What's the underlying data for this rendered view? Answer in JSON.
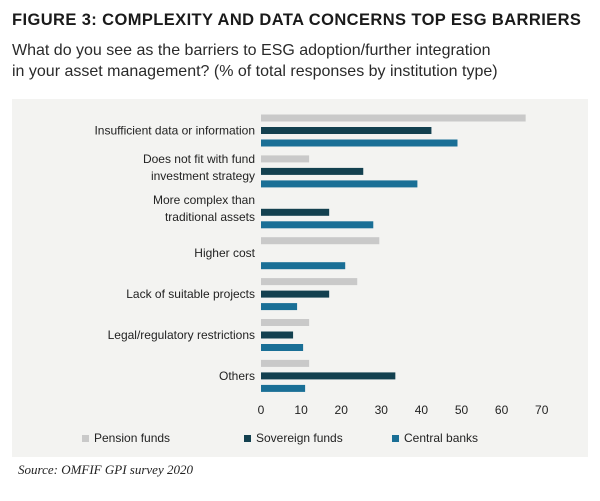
{
  "figure": {
    "title": "FIGURE 3: COMPLEXITY AND DATA CONCERNS TOP ESG BARRIERS",
    "subtitle_line1": "What do you see as the barriers to ESG adoption/further integration",
    "subtitle_line2": "in your asset management? (% of total responses by institution type)",
    "source": "Source: OMFIF GPI survey 2020"
  },
  "chart_data": {
    "type": "bar",
    "orientation": "horizontal",
    "categories": [
      [
        "Insufficient data or information"
      ],
      [
        "Does not fit with fund",
        "investment strategy"
      ],
      [
        "More complex than",
        "traditional assets"
      ],
      [
        "Higher cost"
      ],
      [
        "Lack of suitable projects"
      ],
      [
        "Legal/regulatory restrictions"
      ],
      [
        "Others"
      ]
    ],
    "series": [
      {
        "name": "Pension funds",
        "color": "#c9c9c9",
        "values": [
          66,
          12,
          0,
          29.5,
          24,
          12,
          12
        ]
      },
      {
        "name": "Sovereign funds",
        "color": "#13404f",
        "values": [
          42.5,
          25.5,
          17,
          0,
          17,
          8,
          33.5
        ]
      },
      {
        "name": "Central banks",
        "color": "#1a6f96",
        "values": [
          49,
          39,
          28,
          21,
          9,
          10.5,
          11
        ]
      }
    ],
    "xlim": [
      0,
      70
    ],
    "xticks": [
      0,
      10,
      20,
      30,
      40,
      50,
      60,
      70
    ],
    "grid": false,
    "legend_position": "bottom"
  }
}
